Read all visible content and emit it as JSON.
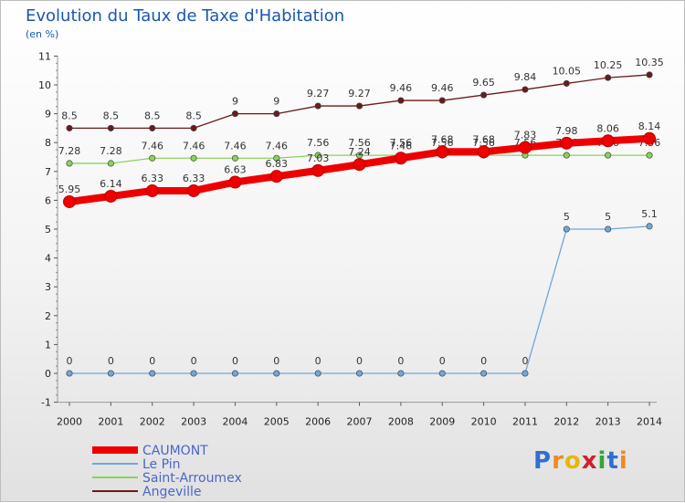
{
  "header": {
    "title": "Evolution du Taux de Taxe d'Habitation",
    "subtitle": "(en %)"
  },
  "logo": {
    "letters": [
      {
        "ch": "P",
        "color": "#2f6fd0"
      },
      {
        "ch": "r",
        "color": "#ef8a1e"
      },
      {
        "ch": "o",
        "color": "#e6b800"
      },
      {
        "ch": "x",
        "color": "#d11f2f"
      },
      {
        "ch": "i",
        "color": "#36a33a"
      },
      {
        "ch": "t",
        "color": "#2f6fd0"
      },
      {
        "ch": "i",
        "color": "#ef8a1e"
      }
    ]
  },
  "chart_data": {
    "type": "line",
    "title": "Evolution du Taux de Taxe d'Habitation",
    "ylabel": "(en %)",
    "xlabel": "",
    "ylim": [
      -1,
      11
    ],
    "yticks": [
      -1,
      0,
      1,
      2,
      3,
      4,
      5,
      6,
      7,
      8,
      9,
      10,
      11
    ],
    "x": [
      "2000",
      "2001",
      "2002",
      "2003",
      "2004",
      "2005",
      "2006",
      "2007",
      "2008",
      "2009",
      "2010",
      "2011",
      "2012",
      "2013",
      "2014"
    ],
    "grid": false,
    "legend_position": "bottom-left",
    "series": [
      {
        "name": "CAUMONT",
        "color": "#ee0000",
        "values": [
          5.95,
          6.14,
          6.33,
          6.33,
          6.63,
          6.83,
          7.03,
          7.24,
          7.46,
          7.68,
          7.68,
          7.83,
          7.98,
          8.06,
          8.14
        ],
        "labels": [
          "5.95",
          "6.14",
          "6.33",
          "6.33",
          "6.63",
          "6.83",
          "7.03",
          "7.24",
          "7.46",
          "7.68",
          "7.68",
          "7.83",
          "7.98",
          "8.06",
          "8.14"
        ]
      },
      {
        "name": "Le Pin",
        "color": "#6fa7d8",
        "values": [
          0,
          0,
          0,
          0,
          0,
          0,
          0,
          0,
          0,
          0,
          0,
          0,
          5,
          5,
          5.1
        ],
        "labels": [
          "0",
          "0",
          "0",
          "0",
          "0",
          "0",
          "0",
          "0",
          "0",
          "0",
          "0",
          "0",
          "5",
          "5",
          "5.1"
        ]
      },
      {
        "name": "Saint-Arroumex",
        "color": "#88d35c",
        "values": [
          7.28,
          7.28,
          7.46,
          7.46,
          7.46,
          7.46,
          7.56,
          7.56,
          7.56,
          7.56,
          7.56,
          7.56,
          7.56,
          7.56,
          7.56
        ],
        "labels": [
          "7.28",
          "7.28",
          "7.46",
          "7.46",
          "7.46",
          "7.46",
          "7.56",
          "7.56",
          "7.56",
          "7.56",
          "7.56",
          "7.56",
          "7.56",
          "7.56",
          "7.56"
        ]
      },
      {
        "name": "Angeville",
        "color": "#6b1a1a",
        "values": [
          8.5,
          8.5,
          8.5,
          8.5,
          9,
          9,
          9.27,
          9.27,
          9.46,
          9.46,
          9.65,
          9.84,
          10.05,
          10.25,
          10.35
        ],
        "labels": [
          "8.5",
          "8.5",
          "8.5",
          "8.5",
          "9",
          "9",
          "9.27",
          "9.27",
          "9.46",
          "9.46",
          "9.65",
          "9.84",
          "10.05",
          "10.25",
          "10.35"
        ]
      }
    ]
  }
}
